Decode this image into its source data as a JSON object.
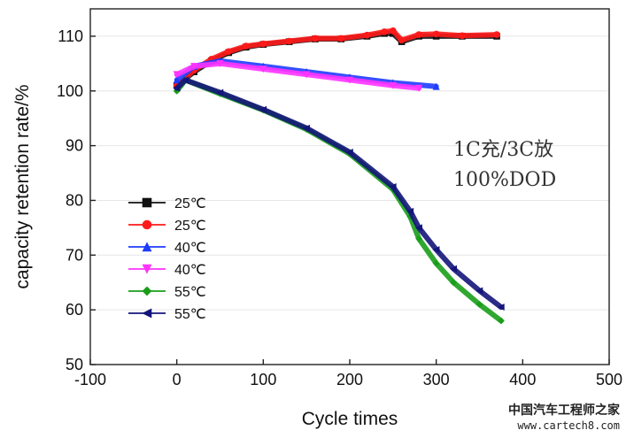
{
  "chart_data": {
    "type": "line",
    "title": "",
    "xlabel": "Cycle times",
    "ylabel": "capacity retention rate/%",
    "xlim": [
      -100,
      500
    ],
    "ylim": [
      50,
      115
    ],
    "xticks": [
      -100,
      0,
      100,
      200,
      300,
      400,
      500
    ],
    "yticks": [
      50,
      60,
      70,
      80,
      90,
      100,
      110
    ],
    "grid": "horizontal",
    "annotations": [
      "1C充/3C放",
      "100%DOD"
    ],
    "series": [
      {
        "name": "25℃",
        "color": "#111111",
        "marker": "square",
        "x": [
          0,
          20,
          40,
          60,
          80,
          100,
          130,
          160,
          190,
          220,
          240,
          250,
          260,
          280,
          300,
          330,
          370
        ],
        "y": [
          101,
          103.5,
          105.5,
          107,
          108,
          108.5,
          109,
          109.5,
          109.5,
          110,
          110.5,
          110.5,
          109,
          110,
          110,
          110,
          110
        ]
      },
      {
        "name": "25℃",
        "color": "#ff1a1a",
        "marker": "circle",
        "x": [
          0,
          20,
          40,
          60,
          80,
          100,
          130,
          160,
          190,
          220,
          240,
          250,
          260,
          280,
          300,
          330,
          370
        ],
        "y": [
          101,
          103.8,
          105.8,
          107.2,
          108.2,
          108.6,
          109.1,
          109.6,
          109.6,
          110.2,
          110.8,
          111,
          109.3,
          110.3,
          110.4,
          110.1,
          110.3
        ]
      },
      {
        "name": "40℃",
        "color": "#1f3cff",
        "marker": "triangle-up",
        "x": [
          0,
          20,
          50,
          100,
          150,
          200,
          250,
          300
        ],
        "y": [
          102,
          104.5,
          105.5,
          104.5,
          103.5,
          102.5,
          101.5,
          100.8
        ]
      },
      {
        "name": "40℃",
        "color": "#ff33ff",
        "marker": "triangle-down",
        "x": [
          0,
          20,
          50,
          100,
          150,
          200,
          250,
          280
        ],
        "y": [
          103,
          104.5,
          105,
          104,
          103,
          102,
          101,
          100.5
        ]
      },
      {
        "name": "55℃",
        "color": "#1a9e1a",
        "marker": "diamond",
        "x": [
          0,
          10,
          50,
          100,
          150,
          200,
          250,
          270,
          280,
          300,
          320,
          350,
          375
        ],
        "y": [
          100,
          102,
          99.5,
          96.5,
          93,
          88.5,
          82,
          77,
          73,
          68.5,
          65,
          61,
          58
        ]
      },
      {
        "name": "55℃",
        "color": "#14157a",
        "marker": "triangle-left",
        "x": [
          0,
          10,
          50,
          100,
          150,
          200,
          250,
          270,
          280,
          300,
          320,
          350,
          375
        ],
        "y": [
          100.5,
          102,
          99.7,
          96.6,
          93.2,
          88.8,
          82.5,
          78,
          75,
          71,
          67.5,
          63.5,
          60.5
        ]
      }
    ]
  },
  "watermark": {
    "text": "中国汽车工程师之家",
    "url": "www.cartech8.com"
  }
}
